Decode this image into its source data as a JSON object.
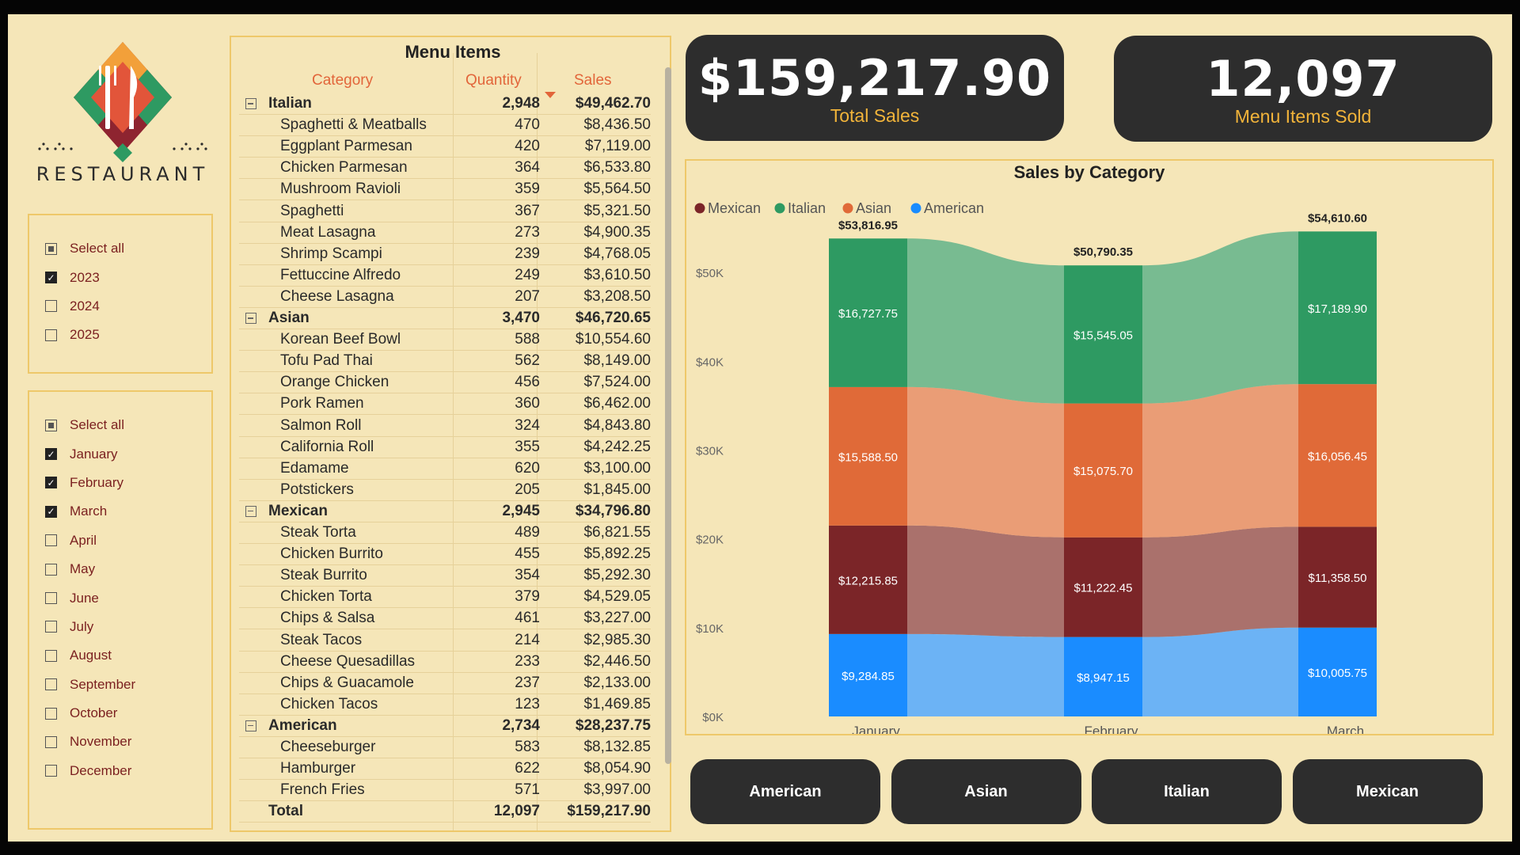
{
  "brand": {
    "name": "RESTAURANT"
  },
  "year_slicer": {
    "items": [
      {
        "label": "Select all",
        "state": "partial"
      },
      {
        "label": "2023",
        "state": "checked"
      },
      {
        "label": "2024",
        "state": "unchecked"
      },
      {
        "label": "2025",
        "state": "unchecked"
      }
    ]
  },
  "month_slicer": {
    "items": [
      {
        "label": "Select all",
        "state": "partial"
      },
      {
        "label": "January",
        "state": "checked"
      },
      {
        "label": "February",
        "state": "checked"
      },
      {
        "label": "March",
        "state": "checked"
      },
      {
        "label": "April",
        "state": "unchecked"
      },
      {
        "label": "May",
        "state": "unchecked"
      },
      {
        "label": "June",
        "state": "unchecked"
      },
      {
        "label": "July",
        "state": "unchecked"
      },
      {
        "label": "August",
        "state": "unchecked"
      },
      {
        "label": "September",
        "state": "unchecked"
      },
      {
        "label": "October",
        "state": "unchecked"
      },
      {
        "label": "November",
        "state": "unchecked"
      },
      {
        "label": "December",
        "state": "unchecked"
      }
    ]
  },
  "menu_table": {
    "title": "Menu Items",
    "headers": {
      "category": "Category",
      "quantity": "Quantity",
      "sales": "Sales"
    },
    "groups": [
      {
        "name": "Italian",
        "quantity": "2,948",
        "sales": "$49,462.70",
        "items": [
          [
            "Spaghetti & Meatballs",
            "470",
            "$8,436.50"
          ],
          [
            "Eggplant Parmesan",
            "420",
            "$7,119.00"
          ],
          [
            "Chicken Parmesan",
            "364",
            "$6,533.80"
          ],
          [
            "Mushroom Ravioli",
            "359",
            "$5,564.50"
          ],
          [
            "Spaghetti",
            "367",
            "$5,321.50"
          ],
          [
            "Meat Lasagna",
            "273",
            "$4,900.35"
          ],
          [
            "Shrimp Scampi",
            "239",
            "$4,768.05"
          ],
          [
            "Fettuccine Alfredo",
            "249",
            "$3,610.50"
          ],
          [
            "Cheese Lasagna",
            "207",
            "$3,208.50"
          ]
        ]
      },
      {
        "name": "Asian",
        "quantity": "3,470",
        "sales": "$46,720.65",
        "items": [
          [
            "Korean Beef Bowl",
            "588",
            "$10,554.60"
          ],
          [
            "Tofu Pad Thai",
            "562",
            "$8,149.00"
          ],
          [
            "Orange Chicken",
            "456",
            "$7,524.00"
          ],
          [
            "Pork Ramen",
            "360",
            "$6,462.00"
          ],
          [
            "Salmon Roll",
            "324",
            "$4,843.80"
          ],
          [
            "California Roll",
            "355",
            "$4,242.25"
          ],
          [
            "Edamame",
            "620",
            "$3,100.00"
          ],
          [
            "Potstickers",
            "205",
            "$1,845.00"
          ]
        ]
      },
      {
        "name": "Mexican",
        "quantity": "2,945",
        "sales": "$34,796.80",
        "items": [
          [
            "Steak Torta",
            "489",
            "$6,821.55"
          ],
          [
            "Chicken Burrito",
            "455",
            "$5,892.25"
          ],
          [
            "Steak Burrito",
            "354",
            "$5,292.30"
          ],
          [
            "Chicken Torta",
            "379",
            "$4,529.05"
          ],
          [
            "Chips & Salsa",
            "461",
            "$3,227.00"
          ],
          [
            "Steak Tacos",
            "214",
            "$2,985.30"
          ],
          [
            "Cheese Quesadillas",
            "233",
            "$2,446.50"
          ],
          [
            "Chips & Guacamole",
            "237",
            "$2,133.00"
          ],
          [
            "Chicken Tacos",
            "123",
            "$1,469.85"
          ]
        ]
      },
      {
        "name": "American",
        "quantity": "2,734",
        "sales": "$28,237.75",
        "items": [
          [
            "Cheeseburger",
            "583",
            "$8,132.85"
          ],
          [
            "Hamburger",
            "622",
            "$8,054.90"
          ],
          [
            "French Fries",
            "571",
            "$3,997.00"
          ]
        ]
      }
    ],
    "total": {
      "label": "Total",
      "quantity": "12,097",
      "sales": "$159,217.90"
    }
  },
  "kpis": {
    "total_sales": {
      "value": "$159,217.90",
      "label": "Total Sales"
    },
    "items_sold": {
      "value": "12,097",
      "label": "Menu Items Sold"
    }
  },
  "category_buttons": [
    "American",
    "Asian",
    "Italian",
    "Mexican"
  ],
  "colors": {
    "background": "#f5e6b8",
    "card": "#2d2d2d",
    "accent": "#f2b43a",
    "header_orange": "#e2653a",
    "American": "#1a8cff",
    "Mexican": "#7b2528",
    "Asian": "#e06a38",
    "Italian": "#2e9a62"
  },
  "chart_data": {
    "type": "bar",
    "stacked": true,
    "title": "Sales by Category",
    "legend_position": "top-left",
    "categories": [
      "January",
      "February",
      "March"
    ],
    "series": [
      {
        "name": "Mexican",
        "values": [
          12215.85,
          11222.45,
          11358.5
        ],
        "labels": [
          "$12,215.85",
          "$11,222.45",
          "$11,358.50"
        ]
      },
      {
        "name": "Italian",
        "values": [
          16727.75,
          15545.05,
          17189.9
        ],
        "labels": [
          "$16,727.75",
          "$15,545.05",
          "$17,189.90"
        ]
      },
      {
        "name": "Asian",
        "values": [
          15588.5,
          15075.7,
          16056.45
        ],
        "labels": [
          "$15,588.50",
          "$15,075.70",
          "$16,056.45"
        ]
      },
      {
        "name": "American",
        "values": [
          9284.85,
          8947.15,
          10005.75
        ],
        "labels": [
          "$9,284.85",
          "$8,947.15",
          "$10,005.75"
        ]
      }
    ],
    "stack_order_bottom_to_top": [
      "American",
      "Mexican",
      "Asian",
      "Italian"
    ],
    "totals": [
      53816.95,
      50790.35,
      54610.6
    ],
    "total_labels": [
      "$53,816.95",
      "$50,790.35",
      "$54,610.60"
    ],
    "y_ticks": [
      "$0K",
      "$10K",
      "$20K",
      "$30K",
      "$40K",
      "$50K"
    ],
    "ylim": [
      0,
      55000
    ],
    "grid": false
  }
}
